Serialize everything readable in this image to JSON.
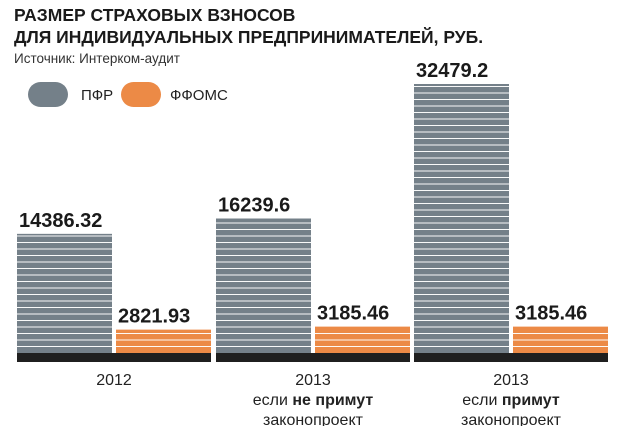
{
  "chart_data": {
    "type": "bar",
    "title": [
      "РАЗМЕР СТРАХОВЫХ ВЗНОСОВ",
      "ДЛЯ ИНДИВИДУАЛЬНЫХ ПРЕДПРИНИМАТЕЛЕЙ, РУБ."
    ],
    "source": "Источник: Интерком-аудит",
    "categories": [
      [
        {
          "text": "2012"
        }
      ],
      [
        {
          "text": "2013"
        },
        {
          "text": "если "
        },
        {
          "text": "не примут",
          "bold": true
        },
        {
          "text": "законопроект"
        }
      ],
      [
        {
          "text": "2013"
        },
        {
          "text": "если "
        },
        {
          "text": "примут",
          "bold": true
        },
        {
          "text": "законопроект"
        }
      ]
    ],
    "series": [
      {
        "name": "ПФР",
        "color": "#748089",
        "values": [
          14386.32,
          16239.6,
          32479.2
        ]
      },
      {
        "name": "ФФОМС",
        "color": "#ec8a46",
        "values": [
          2821.93,
          3185.46,
          3185.46
        ]
      }
    ],
    "value_labels": [
      [
        "14386.32",
        "16239.6",
        "32479.2"
      ],
      [
        "2821.93",
        "3185.46",
        "3185.46"
      ]
    ],
    "ylim": [
      0,
      32479.2
    ],
    "legend_position": "top-left",
    "grid": false,
    "baseline_color": "#1f1f1f"
  }
}
